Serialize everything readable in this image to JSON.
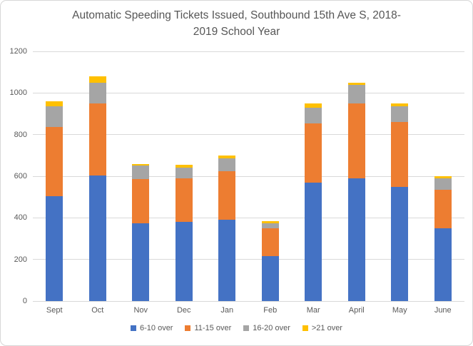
{
  "chart_data": {
    "type": "bar",
    "stacked": true,
    "title": "Automatic Speeding Tickets Issued, Southbound 15th Ave S, 2018-2019 School Year",
    "categories": [
      "Sept",
      "Oct",
      "Nov",
      "Dec",
      "Jan",
      "Feb",
      "Mar",
      "April",
      "May",
      "June"
    ],
    "series": [
      {
        "name": "6-10 over",
        "color": "#4472C4",
        "values": [
          505,
          605,
          375,
          380,
          390,
          215,
          570,
          590,
          550,
          350
        ]
      },
      {
        "name": "11-15 over",
        "color": "#ED7D31",
        "values": [
          330,
          345,
          210,
          210,
          235,
          135,
          285,
          360,
          310,
          185
        ]
      },
      {
        "name": "16-20 over",
        "color": "#A5A5A5",
        "values": [
          100,
          100,
          65,
          50,
          60,
          25,
          75,
          90,
          75,
          55
        ]
      },
      {
        "name": ">21 over",
        "color": "#FFC000",
        "values": [
          25,
          30,
          10,
          15,
          15,
          10,
          20,
          10,
          15,
          10
        ]
      }
    ],
    "totals": [
      960,
      1080,
      660,
      655,
      700,
      385,
      950,
      1050,
      950,
      600
    ],
    "xlabel": "",
    "ylabel": "",
    "ylim": [
      0,
      1200
    ],
    "y_ticks": [
      0,
      200,
      400,
      600,
      800,
      1000,
      1200
    ],
    "grid": true,
    "legend_position": "bottom",
    "colors": {
      "gridline": "#D9D9D9",
      "axis_text": "#595959",
      "title_text": "#565656",
      "frame_border": "#D7D7D7"
    }
  }
}
